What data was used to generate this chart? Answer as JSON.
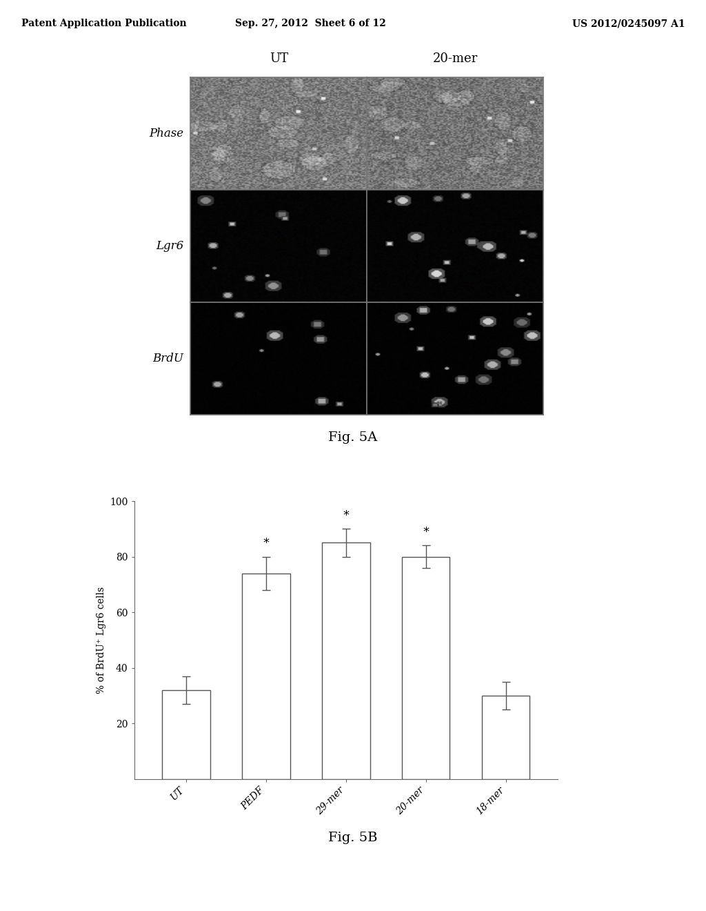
{
  "header": {
    "left": "Patent Application Publication",
    "center": "Sep. 27, 2012  Sheet 6 of 12",
    "right": "US 2012/0245097 A1"
  },
  "fig5a": {
    "title": "Fig. 5A",
    "col_labels": [
      "UT",
      "20-mer"
    ],
    "row_labels": [
      "Phase",
      "Lgr6",
      "BrdU"
    ],
    "n_rows": 3,
    "n_cols": 2
  },
  "fig5b": {
    "title": "Fig. 5B",
    "ylabel": "% of BrdU⁺ Lgr6 cells",
    "categories": [
      "UT",
      "PEDF",
      "29-mer",
      "20-mer",
      "18-mer"
    ],
    "values": [
      32,
      74,
      85,
      80,
      30
    ],
    "errors": [
      5,
      6,
      5,
      4,
      5
    ],
    "significance": [
      false,
      true,
      true,
      true,
      false
    ],
    "ylim": [
      0,
      100
    ],
    "yticks": [
      20,
      40,
      60,
      80,
      100
    ],
    "bar_color": "#ffffff",
    "bar_edgecolor": "#555555",
    "error_color": "#555555"
  }
}
